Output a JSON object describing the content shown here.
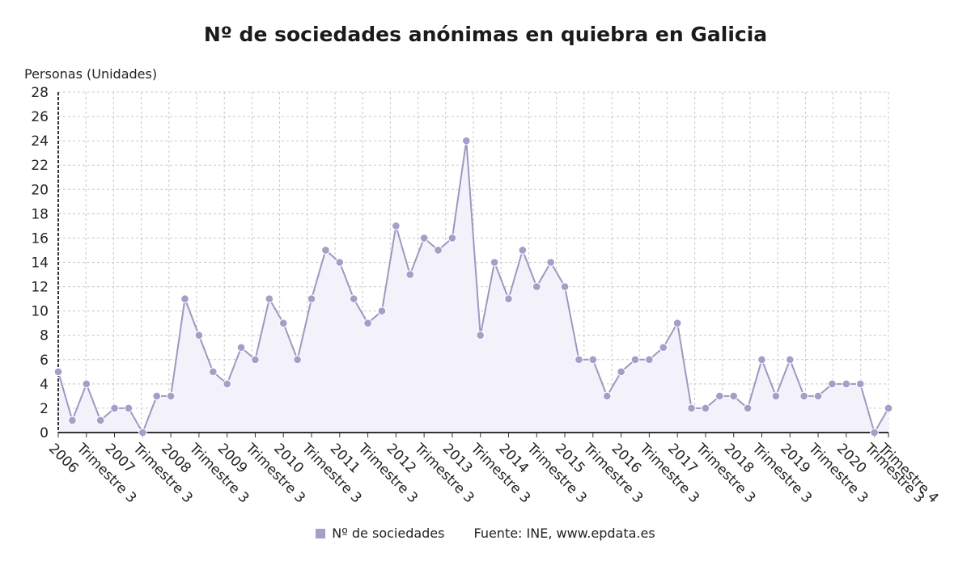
{
  "title": "Nº de sociedades anónimas en quiebra en Galicia",
  "legend": {
    "label": "Nº de sociedades",
    "source": "Fuente: INE, www.epdata.es"
  },
  "colors": {
    "line": "#9e98c0",
    "marker": "#a29fc8",
    "fill": "#f3f2fa",
    "grid": "#c8c8c8",
    "axis": "#333333"
  },
  "chart_data": {
    "type": "area",
    "ylabel": "Personas (Unidades)",
    "ylim": [
      0,
      28
    ],
    "yticks": [
      0,
      2,
      4,
      6,
      8,
      10,
      12,
      14,
      16,
      18,
      20,
      22,
      24,
      26,
      28
    ],
    "grid": true,
    "legend_position": "bottom",
    "x_tick_labels": [
      {
        "index": 0,
        "label": "2006"
      },
      {
        "index": 2,
        "label": "Trimestre 3"
      },
      {
        "index": 4,
        "label": "2007"
      },
      {
        "index": 6,
        "label": "Trimestre 3"
      },
      {
        "index": 8,
        "label": "2008"
      },
      {
        "index": 10,
        "label": "Trimestre 3"
      },
      {
        "index": 12,
        "label": "2009"
      },
      {
        "index": 14,
        "label": "Trimestre 3"
      },
      {
        "index": 16,
        "label": "2010"
      },
      {
        "index": 18,
        "label": "Trimestre 3"
      },
      {
        "index": 20,
        "label": "2011"
      },
      {
        "index": 22,
        "label": "Trimestre 3"
      },
      {
        "index": 24,
        "label": "2012"
      },
      {
        "index": 26,
        "label": "Trimestre 3"
      },
      {
        "index": 28,
        "label": "2013"
      },
      {
        "index": 30,
        "label": "Trimestre 3"
      },
      {
        "index": 32,
        "label": "2014"
      },
      {
        "index": 34,
        "label": "Trimestre 3"
      },
      {
        "index": 36,
        "label": "2015"
      },
      {
        "index": 38,
        "label": "Trimestre 3"
      },
      {
        "index": 40,
        "label": "2016"
      },
      {
        "index": 42,
        "label": "Trimestre 3"
      },
      {
        "index": 44,
        "label": "2017"
      },
      {
        "index": 46,
        "label": "Trimestre 3"
      },
      {
        "index": 48,
        "label": "2018"
      },
      {
        "index": 50,
        "label": "Trimestre 3"
      },
      {
        "index": 52,
        "label": "2019"
      },
      {
        "index": 54,
        "label": "Trimestre 3"
      },
      {
        "index": 56,
        "label": "2020"
      },
      {
        "index": 58,
        "label": "Trimestre 3"
      },
      {
        "index": 59,
        "label": "Trimestre 4"
      }
    ],
    "series": [
      {
        "name": "Nº de sociedades",
        "values": [
          5,
          1,
          4,
          1,
          2,
          2,
          0,
          3,
          3,
          11,
          8,
          5,
          4,
          7,
          6,
          11,
          9,
          6,
          11,
          15,
          14,
          11,
          9,
          10,
          17,
          13,
          16,
          15,
          16,
          24,
          8,
          14,
          11,
          15,
          12,
          14,
          12,
          6,
          6,
          3,
          5,
          6,
          6,
          7,
          9,
          2,
          2,
          3,
          3,
          2,
          6,
          3,
          6,
          3,
          3,
          4,
          4,
          4,
          0,
          2
        ]
      }
    ]
  }
}
